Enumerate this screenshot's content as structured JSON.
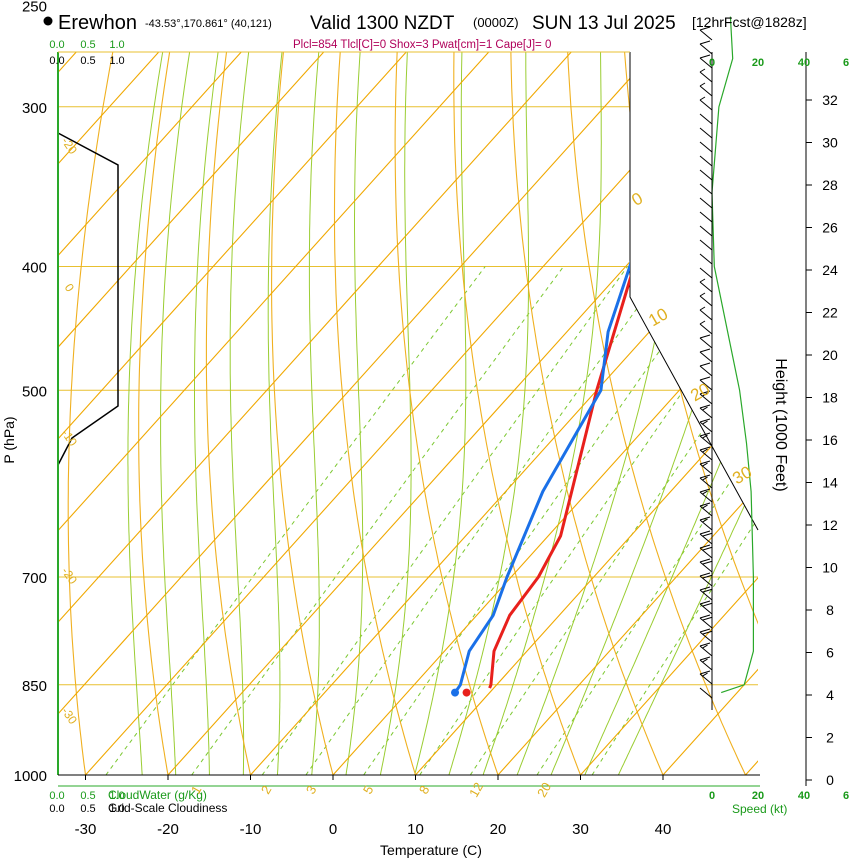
{
  "header": {
    "location": "Erewhon",
    "coords": "-43.53°,170.861° (40,121)",
    "valid": "Valid 1300 NZDT",
    "utc": "(0000Z)",
    "date": "SUN 13 Jul 2025",
    "forecast": "[12hrFcst@1828z]"
  },
  "stats_line": "Plcl=854 Tlcl[C]=0 Shox=3 Pwat[cm]=1 Cape[J]= 0",
  "chart_data": {
    "type": "skew-t",
    "xlabel": "Temperature (C)",
    "ylabel": "P (hPa)",
    "right_axis_label": "Height (1000 Feet)",
    "pressure_ticks": [
      "250",
      "300",
      "400",
      "500",
      "700",
      "850",
      "1000"
    ],
    "temperature_ticks": [
      "-30",
      "-20",
      "-10",
      "0",
      "10",
      "20",
      "30",
      "40"
    ],
    "height_ticks": [
      "0",
      "2",
      "4",
      "6",
      "8",
      "10",
      "12",
      "14",
      "16",
      "18",
      "20",
      "22",
      "24",
      "26",
      "28",
      "30",
      "32"
    ],
    "speed_ticks_top": [
      "0",
      "20",
      "40",
      "6"
    ],
    "speed_ticks_bottom": [
      "0",
      "20",
      "40",
      "6"
    ],
    "speed_label": "Speed (kt)",
    "cloud_water_ticks": [
      "0.0",
      "0.5",
      "1.0"
    ],
    "cloudiness_ticks": [
      "0.0",
      "0.5",
      "1.0"
    ],
    "cloud_water_label": "CloudWater (g/Kg)",
    "cloudiness_label": "Grid-Scale Cloudiness",
    "mixing_ratio_labels": [
      "1",
      "2",
      "3",
      "5",
      "8",
      "12",
      "20"
    ],
    "isotherm_labels": [
      "0",
      "10",
      "20",
      "30"
    ],
    "dry_adiabat_labels": [
      "-20",
      "0",
      "-10",
      "-20",
      "-30"
    ],
    "temperature_profile": [
      [
        855,
        9.5
      ],
      [
        850,
        9.3
      ],
      [
        800,
        6.0
      ],
      [
        750,
        4.0
      ],
      [
        700,
        3.3
      ],
      [
        650,
        1.5
      ],
      [
        600,
        -2.0
      ],
      [
        500,
        -10.0
      ],
      [
        400,
        -19.0
      ],
      [
        350,
        -24.0
      ],
      [
        310,
        -27.5
      ],
      [
        300,
        -26.5
      ],
      [
        285,
        -22.0
      ],
      [
        255,
        -12.5
      ]
    ],
    "dewpoint_profile": [
      [
        862,
        5.8
      ],
      [
        850,
        5.6
      ],
      [
        800,
        3.0
      ],
      [
        750,
        2.0
      ],
      [
        700,
        -0.5
      ],
      [
        600,
        -5.5
      ],
      [
        500,
        -9.5
      ],
      [
        450,
        -15.0
      ],
      [
        400,
        -19.5
      ],
      [
        350,
        -25.0
      ],
      [
        310,
        -28.5
      ],
      [
        300,
        -27.5
      ],
      [
        290,
        -26.0
      ],
      [
        275,
        -23.0
      ],
      [
        255,
        -19.5
      ]
    ],
    "surface_temperature": 7.2,
    "surface_dewpoint": 5.8,
    "surface_pressure": 862,
    "cloud_water_profile": [
      [
        250,
        0.0
      ],
      [
        290,
        0.0
      ],
      [
        310,
        0.75
      ],
      [
        495,
        0.75
      ],
      [
        520,
        0.2
      ],
      [
        540,
        0.0
      ]
    ],
    "wind_speed_profile_kt": [
      [
        862,
        4
      ],
      [
        850,
        14
      ],
      [
        800,
        18
      ],
      [
        700,
        18
      ],
      [
        600,
        17
      ],
      [
        550,
        15
      ],
      [
        500,
        12
      ],
      [
        400,
        1
      ],
      [
        350,
        0
      ],
      [
        300,
        3
      ],
      [
        275,
        9
      ],
      [
        255,
        8
      ]
    ]
  }
}
